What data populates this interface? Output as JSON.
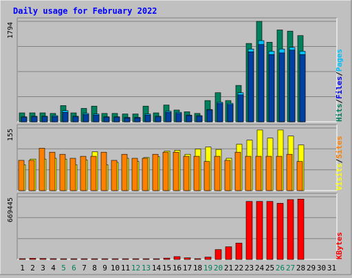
{
  "chart_data": {
    "type": "bar",
    "title": "Daily usage for February 2022",
    "days": [
      "1",
      "2",
      "3",
      "4",
      "5",
      "6",
      "7",
      "8",
      "9",
      "10",
      "11",
      "12",
      "13",
      "14",
      "15",
      "16",
      "17",
      "18",
      "19",
      "20",
      "21",
      "22",
      "23",
      "24",
      "25",
      "26",
      "27",
      "28",
      "29",
      "30",
      "31"
    ],
    "weekend_days": [
      "5",
      "6",
      "12",
      "13",
      "19",
      "20",
      "26",
      "27"
    ],
    "panels": [
      {
        "id": "hits",
        "max_label": "1794",
        "ymax": 1794,
        "legend": [
          "Pages",
          "Files",
          "Hits"
        ],
        "series": [
          {
            "name": "Hits",
            "color": "#00805c",
            "values": [
              160,
              160,
              160,
              150,
              290,
              160,
              240,
              280,
              150,
              150,
              140,
              140,
              280,
              160,
              300,
              210,
              180,
              150,
              380,
              520,
              380,
              650,
              1400,
              1794,
              1420,
              1640,
              1620,
              1540,
              0,
              0,
              0
            ]
          },
          {
            "name": "Files",
            "color": "#00c0ff",
            "values": [
              90,
              100,
              100,
              110,
              200,
              100,
              150,
              140,
              90,
              90,
              80,
              80,
              140,
              100,
              190,
              170,
              120,
              110,
              220,
              350,
              330,
              520,
              1300,
              1450,
              1260,
              1300,
              1330,
              1260,
              0,
              0,
              0
            ]
          },
          {
            "name": "Pages",
            "color": "#0040a0",
            "values": [
              80,
              90,
              90,
              95,
              170,
              90,
              130,
              120,
              80,
              80,
              70,
              70,
              120,
              90,
              170,
              150,
              110,
              100,
              210,
              330,
              310,
              480,
              1250,
              1380,
              1200,
              1230,
              1280,
              1200,
              0,
              0,
              0
            ]
          }
        ]
      },
      {
        "id": "visits",
        "max_label": "155",
        "ymax": 155,
        "legend": [
          "Sites",
          "Visits"
        ],
        "series": [
          {
            "name": "Visits",
            "color": "#ffff00",
            "values": [
              64,
              78,
              78,
              80,
              78,
              64,
              76,
              96,
              64,
              70,
              80,
              72,
              82,
              84,
              98,
              100,
              90,
              103,
              108,
              102,
              80,
              115,
              125,
              150,
              130,
              150,
              135,
              113,
              0,
              0,
              0
            ]
          },
          {
            "name": "Sites",
            "color": "#ff8000",
            "values": [
              75,
              75,
              105,
              95,
              90,
              80,
              85,
              85,
              95,
              75,
              90,
              80,
              80,
              90,
              95,
              95,
              85,
              85,
              72,
              85,
              75,
              95,
              85,
              85,
              85,
              85,
              90,
              72,
              0,
              0,
              0
            ]
          }
        ]
      },
      {
        "id": "kbytes",
        "max_label": "669445",
        "ymax": 669445,
        "legend": [
          "KBytes"
        ],
        "series": [
          {
            "name": "KBytes",
            "color": "#ff0000",
            "values": [
              8000,
              12000,
              10000,
              8000,
              3000,
              3000,
              3000,
              3000,
              5000,
              5000,
              4000,
              4000,
              4000,
              5000,
              14000,
              30000,
              18000,
              8000,
              25000,
              105000,
              135000,
              175000,
              620000,
              620000,
              620000,
              600000,
              640000,
              645000,
              0,
              0,
              0
            ]
          }
        ]
      }
    ]
  }
}
